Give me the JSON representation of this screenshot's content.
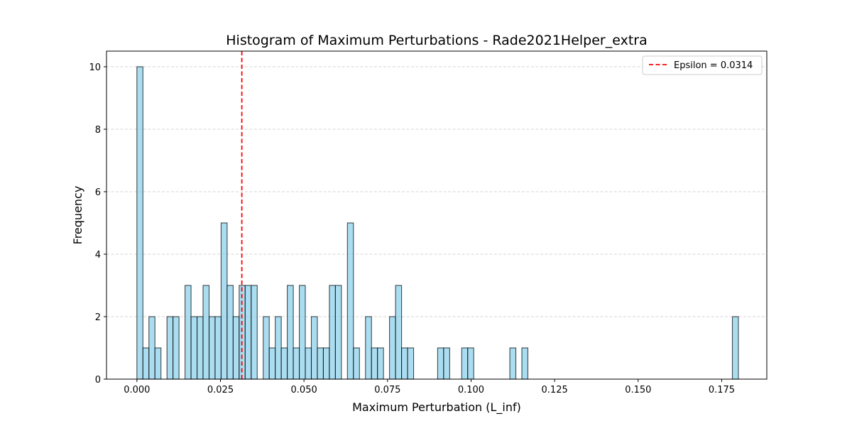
{
  "chart_data": {
    "type": "bar",
    "title": "Histogram of Maximum Perturbations - Rade2021Helper_extra",
    "xlabel": "Maximum Perturbation (L_inf)",
    "ylabel": "Frequency",
    "xlim": [
      -0.0091,
      0.1885
    ],
    "ylim": [
      0,
      10.5
    ],
    "xticks": [
      "0.000",
      "0.025",
      "0.050",
      "0.075",
      "0.100",
      "0.125",
      "0.150",
      "0.175"
    ],
    "xtick_values": [
      0,
      0.025,
      0.05,
      0.075,
      0.1,
      0.125,
      0.15,
      0.175
    ],
    "yticks": [
      "0",
      "2",
      "4",
      "6",
      "8",
      "10"
    ],
    "ytick_values": [
      0,
      2,
      4,
      6,
      8,
      10
    ],
    "grid": "y-dashed",
    "bin_start": 0.0,
    "bin_width": 0.0018,
    "counts": [
      10,
      1,
      2,
      1,
      0,
      2,
      2,
      0,
      3,
      2,
      2,
      3,
      2,
      2,
      5,
      3,
      2,
      3,
      3,
      3,
      0,
      2,
      1,
      2,
      1,
      3,
      1,
      3,
      1,
      2,
      1,
      1,
      3,
      3,
      0,
      5,
      1,
      0,
      2,
      1,
      1,
      0,
      2,
      3,
      1,
      1,
      0,
      0,
      0,
      0,
      1,
      1,
      0,
      0,
      1,
      1,
      0,
      0,
      0,
      0,
      0,
      0,
      1,
      0,
      1,
      0,
      0,
      0,
      0,
      0,
      0,
      0,
      0,
      0,
      0,
      0,
      0,
      0,
      0,
      0,
      0,
      0,
      0,
      0,
      0,
      0,
      0,
      0,
      0,
      0,
      0,
      0,
      0,
      0,
      0,
      0,
      0,
      0,
      0,
      2
    ],
    "bar_color": "#87ceeb",
    "edge_color": "#000000",
    "vline": {
      "x": 0.0314,
      "color": "#ff0000",
      "style": "dashed",
      "label": "Epsilon = 0.0314"
    },
    "legend": {
      "placement": "top-right",
      "entries": [
        "Epsilon = 0.0314"
      ]
    }
  }
}
